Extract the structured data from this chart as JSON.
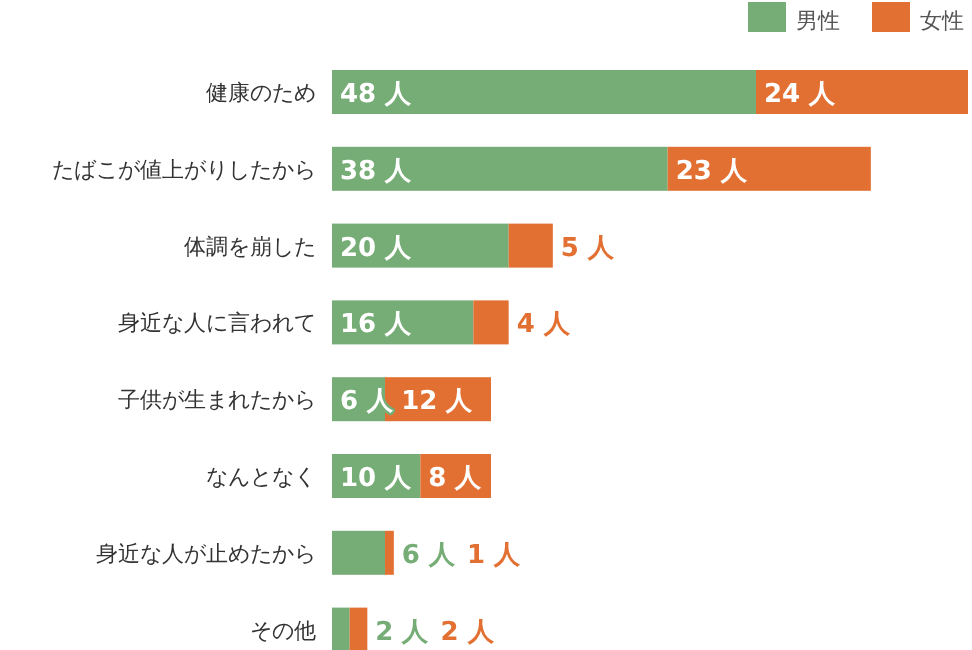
{
  "chart_data": {
    "type": "bar",
    "orientation": "horizontal",
    "stacked": true,
    "legend": "top right",
    "categories": [
      "健康のため",
      "たばこが値上がりしたから",
      "体調を崩した",
      "身近な人に言われて",
      "子供が生まれたから",
      "なんとなく",
      "身近な人が止めたから",
      "その他"
    ],
    "series": [
      {
        "name": "男性",
        "color": "#76ad76",
        "values": [
          48,
          38,
          20,
          16,
          6,
          10,
          6,
          2
        ],
        "value_labels": [
          "48 人",
          "38 人",
          "20 人",
          "16 人",
          "6 人",
          "10 人",
          "6 人",
          "2 人"
        ]
      },
      {
        "name": "女性",
        "color": "#e37033",
        "values": [
          24,
          23,
          5,
          4,
          12,
          8,
          1,
          2
        ],
        "value_labels": [
          "24 人",
          "23 人",
          "5 人",
          "4 人",
          "12 人",
          "8 人",
          "1 人",
          "2 人"
        ]
      }
    ]
  }
}
